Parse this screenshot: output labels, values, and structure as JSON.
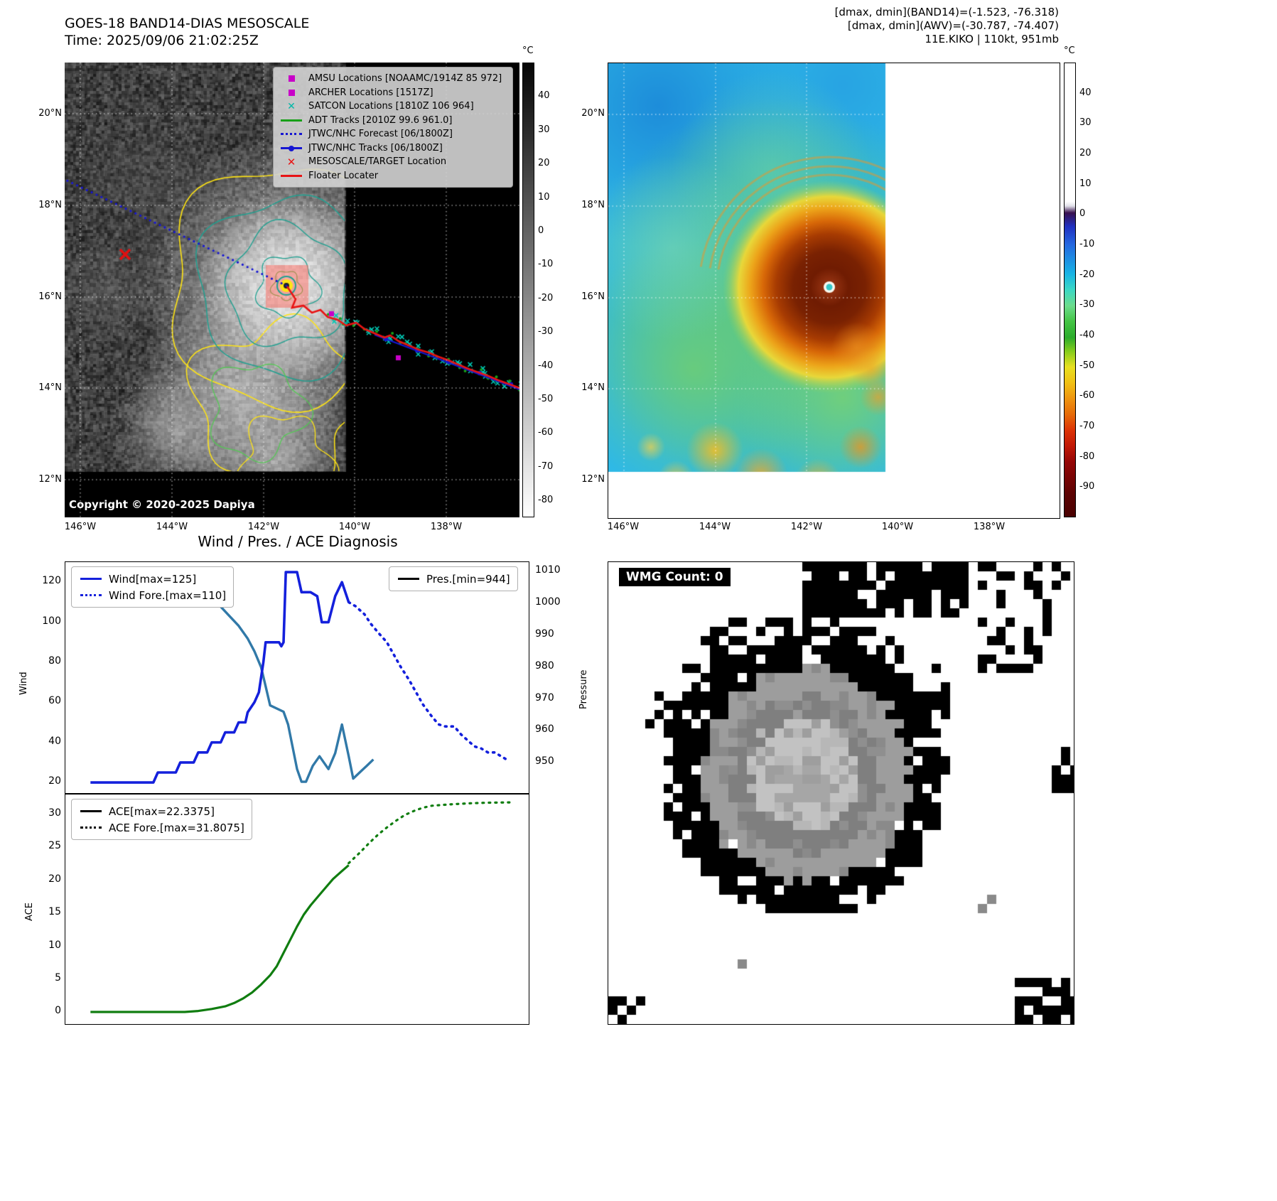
{
  "panel_band14": {
    "title": "GOES-18 BAND14-DIAS MESOSCALE",
    "time_line": "Time: 2025/09/06 21:02:25Z",
    "copyright": "Copyright © 2020-2025 Dapiya",
    "colorbar_unit": "°C",
    "colorbar_ticks": [
      40,
      30,
      20,
      10,
      0,
      -10,
      -20,
      -30,
      -40,
      -50,
      -60,
      -70,
      -80
    ],
    "lat_ticks": [
      "20°N",
      "18°N",
      "16°N",
      "14°N",
      "12°N"
    ],
    "lon_ticks": [
      "146°W",
      "144°W",
      "142°W",
      "140°W",
      "138°W"
    ],
    "legend": [
      {
        "label": "AMSU Locations [NOAAMC/1914Z 85 972]",
        "marker": "square",
        "color": "#c800c8"
      },
      {
        "label": "ARCHER Locations [1517Z]",
        "marker": "square",
        "color": "#c800c8"
      },
      {
        "label": "SATCON Locations [1810Z 106 964]",
        "marker": "x",
        "color": "#00b8a8"
      },
      {
        "label": "ADT Tracks [2010Z 99.6 961.0]",
        "marker": "line",
        "color": "#18a018"
      },
      {
        "label": "JTWC/NHC Forecast [06/1800Z]",
        "marker": "dotted-line",
        "color": "#1616d2"
      },
      {
        "label": "JTWC/NHC Tracks [06/1800Z]",
        "marker": "line-dot",
        "color": "#1616d2"
      },
      {
        "label": "MESOSCALE/TARGET Location",
        "marker": "x-bold",
        "color": "#e81414"
      },
      {
        "label": "Floater Locater",
        "marker": "line",
        "color": "#e81414"
      }
    ]
  },
  "panel_enhanced": {
    "annotations": [
      "[dmax, dmin](BAND14)=(-1.523, -76.318)",
      "[dmax, dmin](AWV)=(-30.787, -74.407)",
      "11E.KIKO | 110kt, 951mb"
    ],
    "colorbar_unit": "°C",
    "colorbar_ticks": [
      40,
      30,
      20,
      10,
      0,
      -10,
      -20,
      -30,
      -40,
      -50,
      -60,
      -70,
      -80,
      -90
    ],
    "lat_ticks": [
      "20°N",
      "18°N",
      "16°N",
      "14°N",
      "12°N"
    ],
    "lon_ticks": [
      "146°W",
      "144°W",
      "142°W",
      "140°W",
      "138°W"
    ]
  },
  "panel_diagnosis": {
    "title": "Wind / Pres. / ACE Diagnosis",
    "wind_ylabel": "Wind",
    "pressure_ylabel": "Pressure",
    "ace_ylabel": "ACE",
    "legend_wind": "Wind[max=125]",
    "legend_wind_fore": "Wind Fore.[max=110]",
    "legend_pres": "Pres.[min=944]",
    "legend_ace": "ACE[max=22.3375]",
    "legend_ace_fore": "ACE Fore.[max=31.8075]"
  },
  "panel_wmg": {
    "label": "WMG Count: 0"
  },
  "chart_data": [
    {
      "type": "line",
      "title": "Wind / Pres. / ACE Diagnosis (upper panel)",
      "xlabel": "",
      "x_note": "x normalized 0-1, no x tick labels shown in figure",
      "ylabel": "Wind",
      "y2label": "Pressure",
      "ylim": [
        14,
        130
      ],
      "y2lim": [
        940,
        1013
      ],
      "yticks": [
        20,
        40,
        60,
        80,
        100,
        120
      ],
      "y2ticks": [
        950,
        960,
        970,
        980,
        990,
        1000,
        1010
      ],
      "grid": false,
      "legend_position": "upper left / upper right",
      "series": [
        {
          "name": "Pres.[min=944]",
          "axis": "right",
          "style": "solid",
          "color": "#3179a8",
          "width": 3.4,
          "points": [
            [
              0.04,
              1007
            ],
            [
              0.22,
              1007
            ],
            [
              0.25,
              1006
            ],
            [
              0.28,
              1004
            ],
            [
              0.31,
              1001
            ],
            [
              0.33,
              999
            ],
            [
              0.35,
              996
            ],
            [
              0.37,
              993
            ],
            [
              0.39,
              989
            ],
            [
              0.405,
              985
            ],
            [
              0.42,
              980
            ],
            [
              0.43,
              974
            ],
            [
              0.44,
              968
            ],
            [
              0.47,
              966
            ],
            [
              0.48,
              962
            ],
            [
              0.49,
              955
            ],
            [
              0.5,
              948
            ],
            [
              0.51,
              944
            ],
            [
              0.52,
              944
            ],
            [
              0.535,
              949
            ],
            [
              0.55,
              952
            ],
            [
              0.56,
              950
            ],
            [
              0.57,
              948
            ],
            [
              0.585,
              953
            ],
            [
              0.6,
              962
            ],
            [
              0.615,
              952
            ],
            [
              0.625,
              945
            ],
            [
              0.64,
              947
            ],
            [
              0.655,
              949
            ],
            [
              0.67,
              951
            ]
          ]
        },
        {
          "name": "Wind[max=125]",
          "axis": "left",
          "style": "solid",
          "color": "#1420dc",
          "width": 3.6,
          "points": [
            [
              0.04,
              20
            ],
            [
              0.18,
              20
            ],
            [
              0.19,
              25
            ],
            [
              0.23,
              25
            ],
            [
              0.24,
              30
            ],
            [
              0.27,
              30
            ],
            [
              0.28,
              35
            ],
            [
              0.3,
              35
            ],
            [
              0.31,
              40
            ],
            [
              0.33,
              40
            ],
            [
              0.34,
              45
            ],
            [
              0.36,
              45
            ],
            [
              0.37,
              50
            ],
            [
              0.385,
              50
            ],
            [
              0.39,
              55
            ],
            [
              0.405,
              60
            ],
            [
              0.415,
              65
            ],
            [
              0.425,
              80
            ],
            [
              0.43,
              90
            ],
            [
              0.46,
              90
            ],
            [
              0.465,
              88
            ],
            [
              0.47,
              90
            ],
            [
              0.475,
              125
            ],
            [
              0.5,
              125
            ],
            [
              0.51,
              115
            ],
            [
              0.53,
              115
            ],
            [
              0.545,
              113
            ],
            [
              0.555,
              100
            ],
            [
              0.57,
              100
            ],
            [
              0.585,
              113
            ],
            [
              0.6,
              120
            ],
            [
              0.615,
              110
            ]
          ]
        },
        {
          "name": "Wind Fore.[max=110]",
          "axis": "left",
          "style": "dotted",
          "color": "#1420dc",
          "width": 3.6,
          "points": [
            [
              0.615,
              110
            ],
            [
              0.63,
              108
            ],
            [
              0.65,
              104
            ],
            [
              0.665,
              99
            ],
            [
              0.68,
              95
            ],
            [
              0.7,
              90
            ],
            [
              0.715,
              84
            ],
            [
              0.73,
              78
            ],
            [
              0.75,
              71
            ],
            [
              0.765,
              65
            ],
            [
              0.78,
              59
            ],
            [
              0.8,
              53
            ],
            [
              0.815,
              49
            ],
            [
              0.83,
              48
            ],
            [
              0.85,
              48
            ],
            [
              0.865,
              44
            ],
            [
              0.88,
              41
            ],
            [
              0.895,
              38
            ],
            [
              0.91,
              37
            ],
            [
              0.925,
              35
            ],
            [
              0.94,
              35
            ],
            [
              0.955,
              33
            ],
            [
              0.97,
              31
            ]
          ]
        }
      ]
    },
    {
      "type": "line",
      "title": "Wind / Pres. / ACE Diagnosis (lower panel)",
      "xlabel": "",
      "x_note": "x normalized 0-1, shares x axis with upper panel",
      "ylabel": "ACE",
      "ylim": [
        -2,
        33
      ],
      "yticks": [
        0,
        5,
        10,
        15,
        20,
        25,
        30
      ],
      "grid": false,
      "legend_position": "upper left",
      "series": [
        {
          "name": "ACE[max=22.3375]",
          "axis": "left",
          "style": "solid",
          "color": "#107d10",
          "width": 3.2,
          "points": [
            [
              0.04,
              0.05
            ],
            [
              0.25,
              0.05
            ],
            [
              0.28,
              0.2
            ],
            [
              0.31,
              0.5
            ],
            [
              0.34,
              0.9
            ],
            [
              0.36,
              1.4
            ],
            [
              0.38,
              2.1
            ],
            [
              0.4,
              3.0
            ],
            [
              0.42,
              4.2
            ],
            [
              0.44,
              5.6
            ],
            [
              0.455,
              7.0
            ],
            [
              0.47,
              9.0
            ],
            [
              0.485,
              11.0
            ],
            [
              0.5,
              13.0
            ],
            [
              0.515,
              14.8
            ],
            [
              0.53,
              16.2
            ],
            [
              0.55,
              17.8
            ],
            [
              0.565,
              19.0
            ],
            [
              0.58,
              20.2
            ],
            [
              0.6,
              21.4
            ],
            [
              0.615,
              22.3
            ]
          ]
        },
        {
          "name": "ACE Fore.[max=31.8075]",
          "axis": "left",
          "style": "dotted",
          "color": "#107d10",
          "width": 3.2,
          "points": [
            [
              0.615,
              22.6
            ],
            [
              0.64,
              24.2
            ],
            [
              0.66,
              25.6
            ],
            [
              0.68,
              26.9
            ],
            [
              0.7,
              28.0
            ],
            [
              0.72,
              29.0
            ],
            [
              0.74,
              29.9
            ],
            [
              0.76,
              30.5
            ],
            [
              0.78,
              31.0
            ],
            [
              0.8,
              31.3
            ],
            [
              0.84,
              31.5
            ],
            [
              0.88,
              31.65
            ],
            [
              0.92,
              31.75
            ],
            [
              0.975,
              31.8
            ]
          ]
        }
      ]
    }
  ]
}
